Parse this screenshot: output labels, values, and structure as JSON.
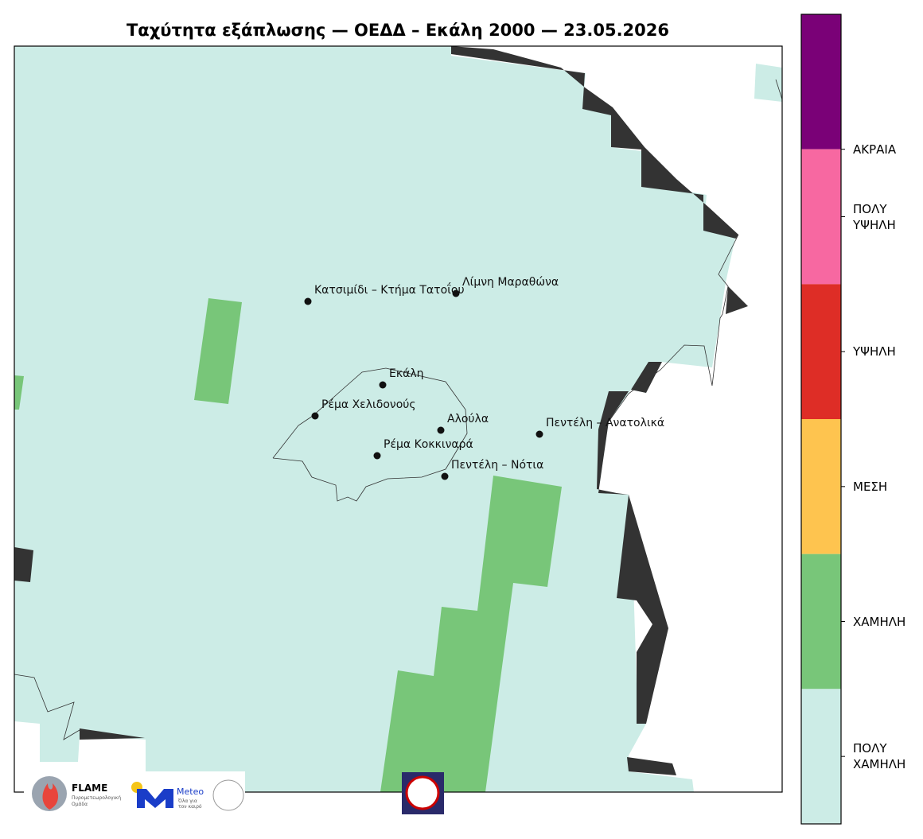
{
  "title": "Ταχύτητα εξάπλωσης — ΟΕΔΔ – Εκάλη 2000 — 23.05.2026",
  "places": [
    "Κατσιμίδι – Κτήμα Τατοΐου",
    "Λίμνη Μαραθώνα",
    "Εκάλη",
    "Ρέμα Χελιδονούς",
    "Αλούλα",
    "Πεντέλη – Ανατολικά",
    "Ρέμα Κοκκιναρά",
    "Πεντέλη – Νότια"
  ],
  "colorbar": {
    "colors": [
      "#7a0177",
      "#f768a1",
      "#de2d26",
      "#fec44f",
      "#78c679",
      "#ccece6"
    ],
    "labels": [
      "ΑΚΡΑΙΑ",
      "ΠΟΛΥ\nΥΨΗΛΗ",
      "ΥΨΗΛΗ",
      "ΜΕΣΗ",
      "ΧΑΜΗΛΗ",
      "ΠΟΛΥ\nΧΑΜΗΛΗ"
    ]
  },
  "logos": {
    "flame": "FLAME",
    "flame_sub": "Πυρομετεωρολογική\nΟμάδα",
    "meteo": "Meteo",
    "meteo_sub": "Όλα για\nτον καιρό"
  }
}
